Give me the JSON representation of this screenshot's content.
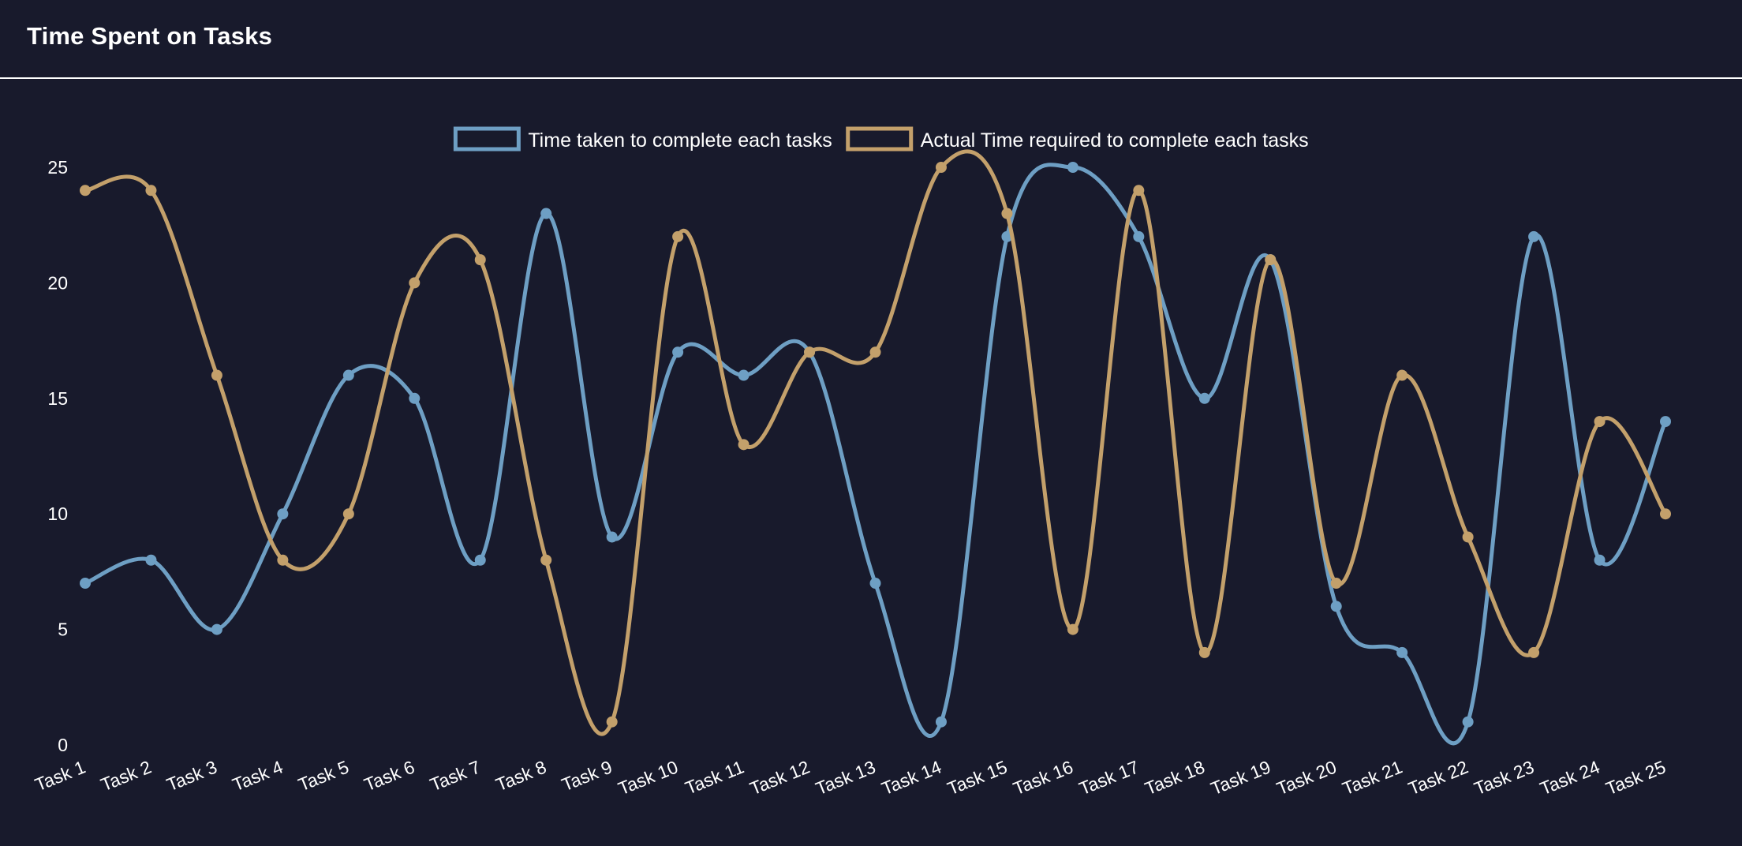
{
  "header": {
    "title": "Time Spent on Tasks"
  },
  "colors": {
    "background": "#181a2c",
    "text": "#ffffff",
    "series_taken": "#6e9fc4",
    "series_required": "#c3a06b"
  },
  "chart_data": {
    "type": "line",
    "title": "",
    "xlabel": "",
    "ylabel": "",
    "ylim": [
      0,
      25
    ],
    "yticks": [
      0,
      5,
      10,
      15,
      20,
      25
    ],
    "grid": false,
    "legend": "top-center",
    "smooth": true,
    "categories": [
      "Task 1",
      "Task 2",
      "Task 3",
      "Task 4",
      "Task 5",
      "Task 6",
      "Task 7",
      "Task 8",
      "Task 9",
      "Task 10",
      "Task 11",
      "Task 12",
      "Task 13",
      "Task 14",
      "Task 15",
      "Task 16",
      "Task 17",
      "Task 18",
      "Task 19",
      "Task 20",
      "Task 21",
      "Task 22",
      "Task 23",
      "Task 24",
      "Task 25"
    ],
    "series": [
      {
        "name": "Time taken to complete each tasks",
        "color": "#6e9fc4",
        "values": [
          7,
          8,
          5,
          10,
          16,
          15,
          8,
          23,
          9,
          17,
          16,
          17,
          7,
          1,
          22,
          25,
          22,
          15,
          21,
          6,
          4,
          1,
          22,
          8,
          14
        ]
      },
      {
        "name": "Actual Time required to complete each tasks",
        "color": "#c3a06b",
        "values": [
          24,
          24,
          16,
          8,
          10,
          20,
          21,
          8,
          1,
          22,
          13,
          17,
          17,
          25,
          23,
          5,
          24,
          4,
          21,
          7,
          16,
          9,
          4,
          14,
          10
        ]
      }
    ]
  }
}
